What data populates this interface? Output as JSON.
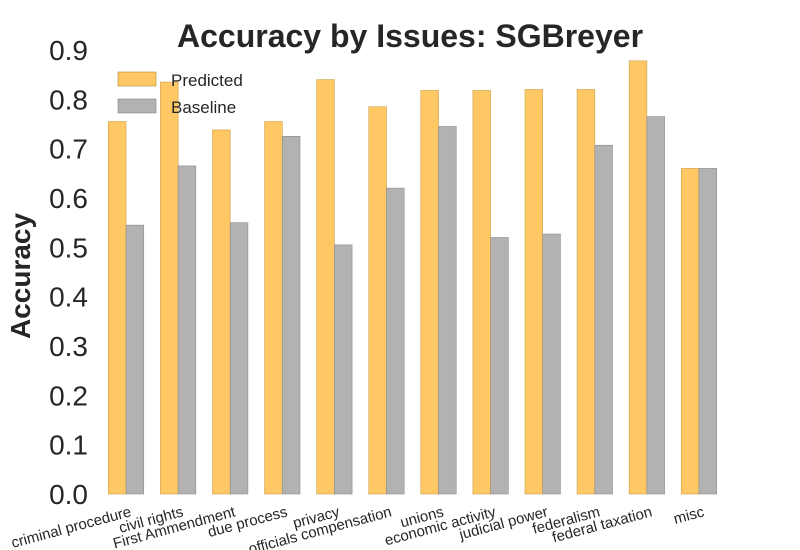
{
  "chart_data": {
    "type": "bar",
    "title": "Accuracy by Issues: SGBreyer",
    "xlabel": "",
    "ylabel": "Accuracy",
    "ylim": [
      0,
      0.9
    ],
    "yticks": [
      "0.0",
      "0.1",
      "0.2",
      "0.3",
      "0.4",
      "0.5",
      "0.6",
      "0.7",
      "0.8",
      "0.9"
    ],
    "grid": false,
    "legend_position": "top-left",
    "categories": [
      "criminal procedure",
      "civil rights",
      "First Ammendment",
      "due process",
      "privacy",
      "officials compensation",
      "unions",
      "economic activity",
      "judicial power",
      "federalism",
      "federal taxation",
      "misc"
    ],
    "series": [
      {
        "name": "Predicted",
        "color": "#ffc865",
        "values": [
          0.755,
          0.835,
          0.738,
          0.755,
          0.84,
          0.785,
          0.818,
          0.818,
          0.82,
          0.82,
          0.878,
          0.66
        ]
      },
      {
        "name": "Baseline",
        "color": "#b2b2b2",
        "values": [
          0.545,
          0.665,
          0.55,
          0.725,
          0.505,
          0.62,
          0.745,
          0.52,
          0.527,
          0.707,
          0.765,
          0.66
        ]
      }
    ]
  }
}
